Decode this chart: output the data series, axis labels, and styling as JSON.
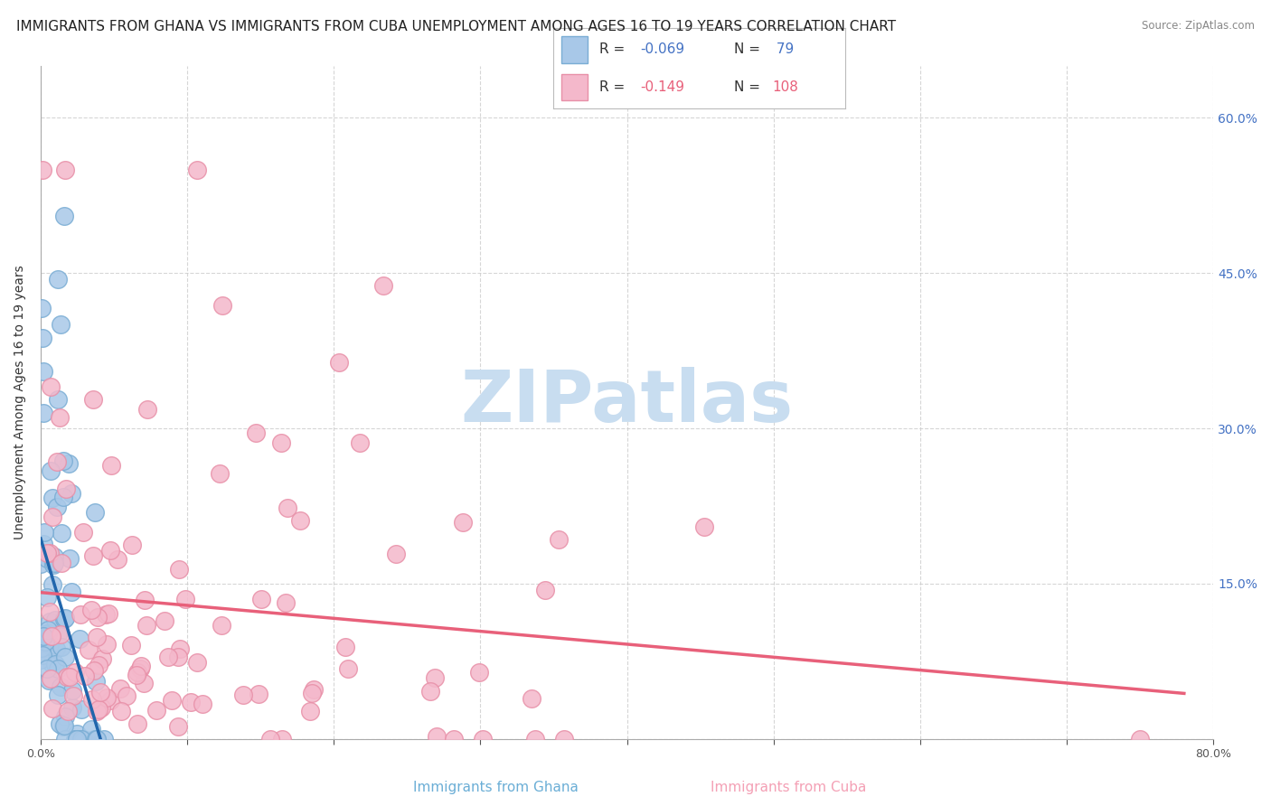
{
  "title": "IMMIGRANTS FROM GHANA VS IMMIGRANTS FROM CUBA UNEMPLOYMENT AMONG AGES 16 TO 19 YEARS CORRELATION CHART",
  "source": "Source: ZipAtlas.com",
  "ylabel": "Unemployment Among Ages 16 to 19 years",
  "xlabel_ghana": "Immigrants from Ghana",
  "xlabel_cuba": "Immigrants from Cuba",
  "xmin": 0.0,
  "xmax": 0.8,
  "ymin": 0.0,
  "ymax": 0.65,
  "yticks": [
    0.0,
    0.15,
    0.3,
    0.45,
    0.6
  ],
  "xticks": [
    0.0,
    0.1,
    0.2,
    0.3,
    0.4,
    0.5,
    0.6,
    0.7,
    0.8
  ],
  "xtick_labels": [
    "0.0%",
    "",
    "",
    "",
    "",
    "",
    "",
    "",
    "80.0%"
  ],
  "ghana_R": -0.069,
  "ghana_N": 79,
  "cuba_R": -0.149,
  "cuba_N": 108,
  "ghana_color": "#a8c8e8",
  "ghana_edge_color": "#7aadd4",
  "cuba_color": "#f4b8cb",
  "cuba_edge_color": "#e890a8",
  "ghana_trend_color": "#2166ac",
  "cuba_trend_color": "#e8607a",
  "ghana_seed": 42,
  "cuba_seed": 77,
  "watermark": "ZIPatlas",
  "watermark_color": "#c8ddf0",
  "background_color": "#ffffff",
  "grid_color": "#cccccc",
  "title_fontsize": 11,
  "axis_label_fontsize": 10,
  "tick_fontsize": 9,
  "right_ytick_labels": [
    "60.0%",
    "45.0%",
    "30.0%",
    "15.0%"
  ],
  "right_ytick_positions": [
    0.6,
    0.45,
    0.3,
    0.15
  ],
  "legend_R_ghana": "R = -0.069",
  "legend_N_ghana": "N =  79",
  "legend_R_cuba": "R = -0.149",
  "legend_N_cuba": "N = 108"
}
